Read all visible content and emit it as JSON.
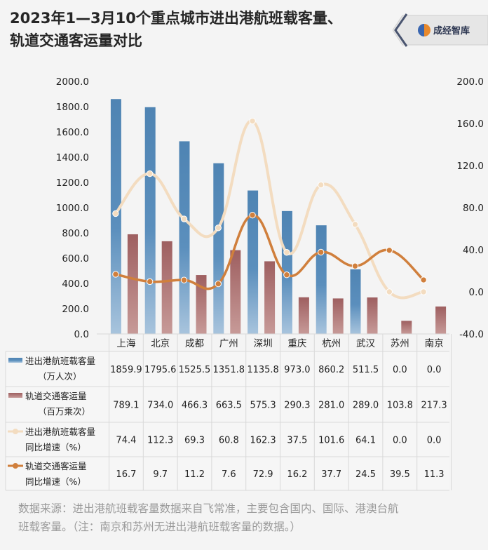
{
  "header": {
    "title_line1": "2023年1—3月10个重点城市进出港航班载客量、",
    "title_line2": "轨道交通客运量对比",
    "brand": "成经智库"
  },
  "footer": {
    "source_line1": "数据来源：进出港航班载客量数据来自飞常准，主要包含国内、国际、港澳台航",
    "source_line2": "班载客量。（注：南京和苏州无进出港航班载客量的数据。）"
  },
  "colors": {
    "flight_bar": "#5b8db8",
    "rail_bar": "#a96b6b",
    "flight_growth": "#f3dcc0",
    "rail_growth": "#d07f3c"
  },
  "chart_data": {
    "type": "bar",
    "categories": [
      "上海",
      "北京",
      "成都",
      "广州",
      "深圳",
      "重庆",
      "杭州",
      "武汉",
      "苏州",
      "南京"
    ],
    "series": [
      {
        "name": "进出港航班载客量（万人次）",
        "label_lines": [
          "进出港航班载客量",
          "（万人次）"
        ],
        "kind": "bar",
        "axis": "left",
        "values": [
          1859.9,
          1795.6,
          1525.5,
          1351.8,
          1135.8,
          973.0,
          860.2,
          511.5,
          0.0,
          0.0
        ],
        "display": [
          "1859.9",
          "1795.6",
          "1525.5",
          "1351.8",
          "1135.8",
          "973.0",
          "860.2",
          "511.5",
          "0.0",
          "0.0"
        ]
      },
      {
        "name": "轨道交通客运量（百万乘次）",
        "label_lines": [
          "轨道交通客运量",
          "（百万乘次）"
        ],
        "kind": "bar",
        "axis": "left",
        "values": [
          789.1,
          734.0,
          466.3,
          663.5,
          575.3,
          290.3,
          281.0,
          289.0,
          103.8,
          217.3
        ],
        "display": [
          "789.1",
          "734.0",
          "466.3",
          "663.5",
          "575.3",
          "290.3",
          "281.0",
          "289.0",
          "103.8",
          "217.3"
        ]
      },
      {
        "name": "进出港航班载客量同比增速（%）",
        "label_lines": [
          "进出港航班载客量",
          "同比增速（%）"
        ],
        "kind": "line",
        "axis": "right",
        "values": [
          74.4,
          112.3,
          69.3,
          60.8,
          162.3,
          37.5,
          101.6,
          64.1,
          0.0,
          0.0
        ],
        "display": [
          "74.4",
          "112.3",
          "69.3",
          "60.8",
          "162.3",
          "37.5",
          "101.6",
          "64.1",
          "0.0",
          "0.0"
        ]
      },
      {
        "name": "轨道交通客运量同比增速（%）",
        "label_lines": [
          "轨道交通客运量",
          "同比增速（%）"
        ],
        "kind": "line",
        "axis": "right",
        "values": [
          16.7,
          9.7,
          11.2,
          7.6,
          72.9,
          16.2,
          37.7,
          24.5,
          39.5,
          11.3
        ],
        "display": [
          "16.7",
          "9.7",
          "11.2",
          "7.6",
          "72.9",
          "16.2",
          "37.7",
          "24.5",
          "39.5",
          "11.3"
        ]
      }
    ],
    "y_left": {
      "min": 0,
      "max": 2000,
      "step": 200,
      "ticks": [
        "0.0",
        "200.0",
        "400.0",
        "600.0",
        "800.0",
        "1000.0",
        "1200.0",
        "1400.0",
        "1600.0",
        "1800.0",
        "2000.0"
      ]
    },
    "y_right": {
      "min": -40,
      "max": 200,
      "step": 40,
      "ticks": [
        "-40.0",
        "0.0",
        "40.0",
        "80.0",
        "120.0",
        "160.0",
        "200.0"
      ]
    },
    "grid": false,
    "legend": "data-table-below"
  }
}
